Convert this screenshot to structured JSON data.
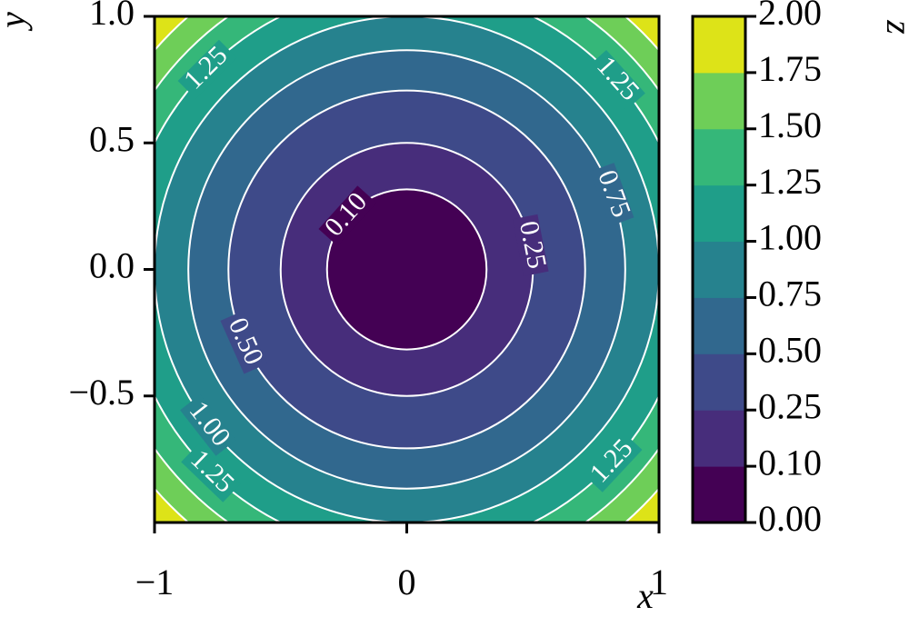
{
  "chart_data": {
    "type": "contourf",
    "x_label": "x",
    "y_label": "y",
    "colorbar_label": "z",
    "xlim": [
      -1,
      1
    ],
    "ylim": [
      -1,
      1
    ],
    "xticks": [
      {
        "value": -1,
        "label": "−1"
      },
      0,
      1
    ],
    "yticks": [
      {
        "value": -0.5,
        "label": "−0.5"
      },
      {
        "value": 0,
        "label": "0.0"
      },
      {
        "value": 0.5,
        "label": "0.5"
      },
      {
        "value": 1,
        "label": "1.0"
      }
    ],
    "colorbar_ticks": [
      {
        "value": 0,
        "label": "0.00"
      },
      {
        "value": 0.1,
        "label": "0.10"
      },
      {
        "value": 0.25,
        "label": "0.25"
      },
      {
        "value": 0.5,
        "label": "0.50"
      },
      {
        "value": 0.75,
        "label": "0.75"
      },
      {
        "value": 1,
        "label": "1.00"
      },
      {
        "value": 1.25,
        "label": "1.25"
      },
      {
        "value": 1.5,
        "label": "1.50"
      },
      {
        "value": 1.75,
        "label": "1.75"
      },
      {
        "value": 2,
        "label": "2.00"
      }
    ],
    "colors": [
      "#440154",
      "#472d7b",
      "#3e4a89",
      "#31688e",
      "#26828e",
      "#1f9e89",
      "#35b779",
      "#6ece58",
      "#dde318"
    ],
    "line_color": "#ffffff",
    "contour_labels": [
      {
        "value": 0.1,
        "label": "0.10"
      },
      {
        "value": 0.25,
        "label": "0.25"
      },
      {
        "value": 0.5,
        "label": "0.50"
      },
      {
        "value": 0.75,
        "label": "0.75"
      },
      {
        "value": 1,
        "label": "1.00"
      },
      {
        "value": 1.25,
        "label": "1.25"
      }
    ]
  }
}
